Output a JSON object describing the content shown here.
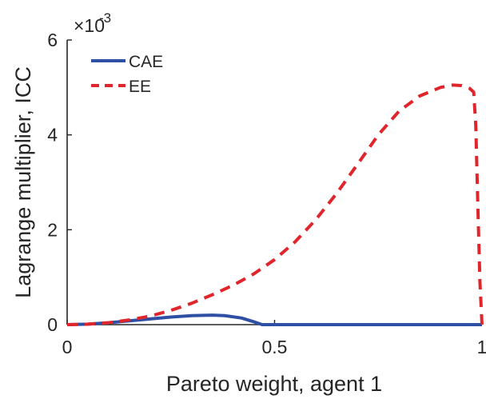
{
  "chart_data": {
    "type": "line",
    "title": "",
    "xlabel": "Pareto weight, agent 1",
    "ylabel": "Lagrange multiplier, ICC",
    "xlim": [
      0,
      1
    ],
    "ylim": [
      0,
      0.006
    ],
    "y_exponent_label": "×10",
    "y_exponent_power": "-3",
    "x_ticks": [
      0,
      0.5,
      1
    ],
    "x_tick_labels": [
      "0",
      "0.5",
      "1"
    ],
    "y_ticks": [
      0,
      0.002,
      0.004,
      0.006
    ],
    "y_tick_labels": [
      "0",
      "2",
      "4",
      "6"
    ],
    "grid": false,
    "legend_position": "top-left",
    "series": [
      {
        "name": "CAE",
        "color": "#2E4FA3",
        "style": "solid",
        "x": [
          0,
          0.05,
          0.1,
          0.15,
          0.2,
          0.25,
          0.3,
          0.35,
          0.38,
          0.42,
          0.45,
          0.47,
          0.5,
          0.6,
          0.7,
          0.8,
          0.9,
          1.0
        ],
        "y": [
          0,
          1e-05,
          4e-05,
          8e-05,
          0.00012,
          0.00016,
          0.00019,
          0.0002,
          0.00019,
          0.00014,
          6e-05,
          0.0,
          0.0,
          0.0,
          0.0,
          0.0,
          0.0,
          0.0
        ]
      },
      {
        "name": "EE",
        "color": "#E0252B",
        "style": "dashed",
        "x": [
          0,
          0.05,
          0.1,
          0.15,
          0.2,
          0.25,
          0.3,
          0.35,
          0.4,
          0.45,
          0.5,
          0.55,
          0.6,
          0.65,
          0.7,
          0.75,
          0.8,
          0.85,
          0.9,
          0.93,
          0.95,
          0.97,
          0.98,
          0.985,
          0.99,
          0.995,
          1.0
        ],
        "y": [
          0,
          1e-05,
          4e-05,
          0.0001,
          0.00018,
          0.0003,
          0.00045,
          0.00063,
          0.00083,
          0.00107,
          0.00137,
          0.00175,
          0.00222,
          0.00277,
          0.00338,
          0.004,
          0.0045,
          0.00482,
          0.005,
          0.00505,
          0.00504,
          0.00498,
          0.0049,
          0.0042,
          0.0025,
          0.0009,
          0.0
        ]
      }
    ]
  }
}
